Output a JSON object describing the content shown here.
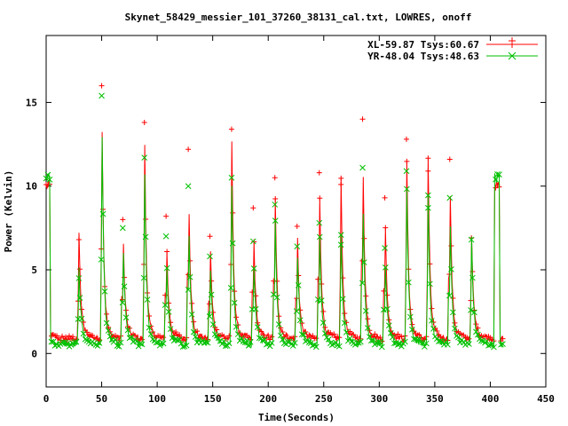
{
  "chart_data": {
    "type": "line",
    "title": "Skynet_58429_messier_101_37260_38131_cal.txt, LOWRES, onoff",
    "xlabel": "Time(Seconds)",
    "ylabel": "Power (Kelvin)",
    "xlim": [
      0,
      450
    ],
    "ylim": [
      -2,
      19
    ],
    "xticks": [
      0,
      50,
      100,
      150,
      200,
      250,
      300,
      350,
      400,
      450
    ],
    "yticks": [
      0,
      5,
      10,
      15
    ],
    "grid": false,
    "legend_position": "top-right",
    "colors": {
      "XL": "#ff0000",
      "YR": "#00c000"
    },
    "series": [
      {
        "name": "XL-59.87 Tsys:60.67",
        "marker": "plus",
        "baseline": 0.9,
        "cal_on": [
          [
            0,
            10.0
          ],
          [
            406,
            10.0
          ]
        ],
        "spikes": [
          [
            29.5,
            6.8
          ],
          [
            50,
            16.0
          ],
          [
            69,
            8.0
          ],
          [
            88.5,
            13.8
          ],
          [
            108,
            8.2
          ],
          [
            128,
            12.2
          ],
          [
            147.5,
            7.0
          ],
          [
            167,
            13.4
          ],
          [
            186.5,
            8.7
          ],
          [
            206,
            10.5
          ],
          [
            226,
            7.6
          ],
          [
            246,
            10.8
          ],
          [
            265.5,
            10.1
          ],
          [
            285,
            14.0
          ],
          [
            305,
            9.3
          ],
          [
            324.5,
            12.8
          ],
          [
            344,
            10.9
          ],
          [
            363.5,
            11.6
          ],
          [
            383,
            6.9
          ]
        ]
      },
      {
        "name": "YR-48.04 Tsys:48.63",
        "marker": "cross",
        "baseline": 0.55,
        "cal_on": [
          [
            0,
            10.5
          ],
          [
            406,
            10.5
          ]
        ],
        "spikes": [
          [
            29.5,
            4.5
          ],
          [
            50,
            15.4
          ],
          [
            69,
            7.5
          ],
          [
            88.5,
            11.7
          ],
          [
            108,
            7.0
          ],
          [
            128,
            10.0
          ],
          [
            147.5,
            5.8
          ],
          [
            167,
            10.5
          ],
          [
            186.5,
            6.7
          ],
          [
            206,
            8.9
          ],
          [
            226,
            6.4
          ],
          [
            246,
            7.8
          ],
          [
            265.5,
            6.5
          ],
          [
            285,
            11.1
          ],
          [
            305,
            6.3
          ],
          [
            324.5,
            10.9
          ],
          [
            344,
            8.7
          ],
          [
            363.5,
            9.3
          ],
          [
            383,
            6.8
          ]
        ]
      }
    ]
  }
}
